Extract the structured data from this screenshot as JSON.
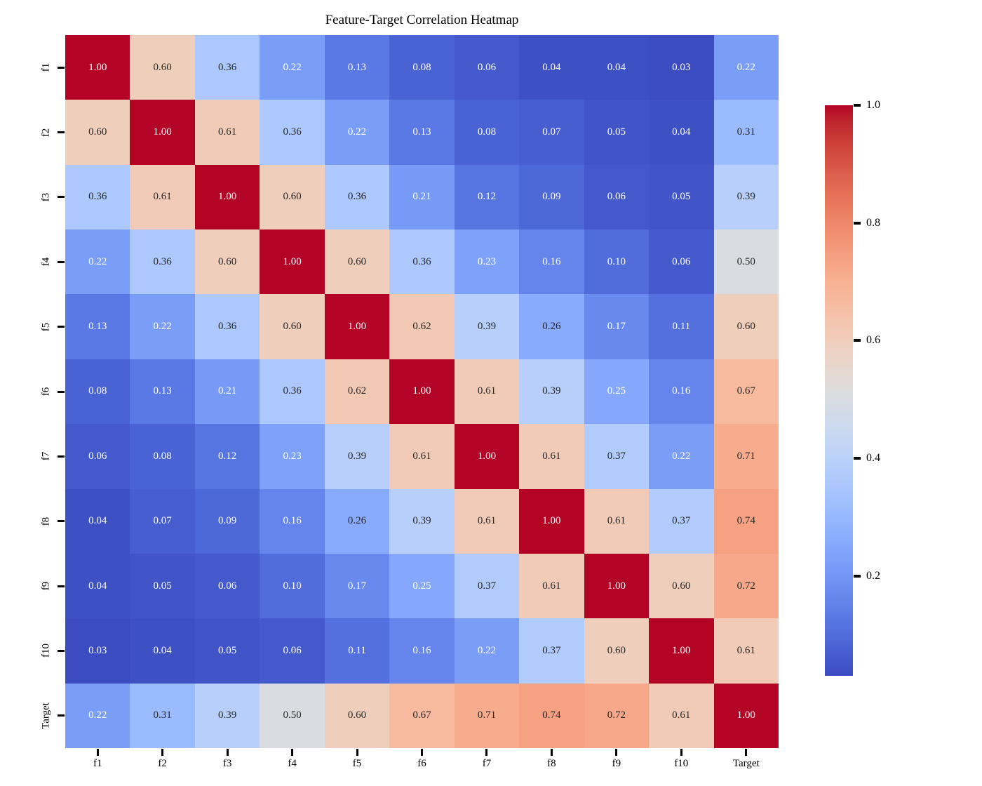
{
  "title": "Feature-Target Correlation Heatmap",
  "colors": {
    "background": "#ffffff",
    "axis_text": "#000000",
    "annotation_dark": "#262626",
    "annotation_light": "#ffffff",
    "cmap_min": "#3b4cc0",
    "cmap_mid": "#dddcdc",
    "cmap_max": "#b40426"
  },
  "chart_data": {
    "type": "heatmap",
    "title": "Feature-Target Correlation Heatmap",
    "labels": [
      "f1",
      "f2",
      "f3",
      "f4",
      "f5",
      "f6",
      "f7",
      "f8",
      "f9",
      "f10",
      "Target"
    ],
    "matrix": [
      [
        1.0,
        0.6,
        0.36,
        0.22,
        0.13,
        0.08,
        0.06,
        0.04,
        0.04,
        0.03,
        0.22
      ],
      [
        0.6,
        1.0,
        0.61,
        0.36,
        0.22,
        0.13,
        0.08,
        0.07,
        0.05,
        0.04,
        0.31
      ],
      [
        0.36,
        0.61,
        1.0,
        0.6,
        0.36,
        0.21,
        0.12,
        0.09,
        0.06,
        0.05,
        0.39
      ],
      [
        0.22,
        0.36,
        0.6,
        1.0,
        0.6,
        0.36,
        0.23,
        0.16,
        0.1,
        0.06,
        0.5
      ],
      [
        0.13,
        0.22,
        0.36,
        0.6,
        1.0,
        0.62,
        0.39,
        0.26,
        0.17,
        0.11,
        0.6
      ],
      [
        0.08,
        0.13,
        0.21,
        0.36,
        0.62,
        1.0,
        0.61,
        0.39,
        0.25,
        0.16,
        0.67
      ],
      [
        0.06,
        0.08,
        0.12,
        0.23,
        0.39,
        0.61,
        1.0,
        0.61,
        0.37,
        0.22,
        0.71
      ],
      [
        0.04,
        0.07,
        0.09,
        0.16,
        0.26,
        0.39,
        0.61,
        1.0,
        0.61,
        0.37,
        0.74
      ],
      [
        0.04,
        0.05,
        0.06,
        0.1,
        0.17,
        0.25,
        0.37,
        0.61,
        1.0,
        0.6,
        0.72
      ],
      [
        0.03,
        0.04,
        0.05,
        0.06,
        0.11,
        0.16,
        0.22,
        0.37,
        0.6,
        1.0,
        0.61
      ],
      [
        0.22,
        0.31,
        0.39,
        0.5,
        0.6,
        0.67,
        0.71,
        0.74,
        0.72,
        0.61,
        1.0
      ]
    ],
    "annotation_decimals": 2,
    "vmin": 0.03,
    "vmax": 1.0,
    "colorbar_ticks": [
      1.0,
      0.8,
      0.6,
      0.4,
      0.2
    ],
    "legend_position": "right-colorbar",
    "grid": false,
    "colormap": {
      "name": "coolwarm",
      "stops": [
        [
          0.23,
          0.299,
          0.754
        ],
        [
          0.266,
          0.353,
          0.801
        ],
        [
          0.304,
          0.407,
          0.845
        ],
        [
          0.343,
          0.459,
          0.884
        ],
        [
          0.383,
          0.509,
          0.917
        ],
        [
          0.424,
          0.558,
          0.946
        ],
        [
          0.467,
          0.605,
          0.968
        ],
        [
          0.51,
          0.648,
          0.985
        ],
        [
          0.553,
          0.689,
          0.995
        ],
        [
          0.596,
          0.726,
          1.0
        ],
        [
          0.639,
          0.76,
          0.998
        ],
        [
          0.681,
          0.789,
          0.99
        ],
        [
          0.722,
          0.814,
          0.977
        ],
        [
          0.761,
          0.834,
          0.957
        ],
        [
          0.799,
          0.85,
          0.932
        ],
        [
          0.833,
          0.86,
          0.901
        ],
        [
          0.865,
          0.865,
          0.865
        ],
        [
          0.898,
          0.849,
          0.821
        ],
        [
          0.924,
          0.827,
          0.775
        ],
        [
          0.944,
          0.801,
          0.727
        ],
        [
          0.959,
          0.77,
          0.678
        ],
        [
          0.967,
          0.734,
          0.629
        ],
        [
          0.97,
          0.694,
          0.579
        ],
        [
          0.967,
          0.65,
          0.53
        ],
        [
          0.958,
          0.603,
          0.482
        ],
        [
          0.944,
          0.552,
          0.434
        ],
        [
          0.924,
          0.497,
          0.388
        ],
        [
          0.899,
          0.44,
          0.343
        ],
        [
          0.869,
          0.378,
          0.3
        ],
        [
          0.835,
          0.313,
          0.259
        ],
        [
          0.796,
          0.241,
          0.221
        ],
        [
          0.753,
          0.157,
          0.184
        ],
        [
          0.706,
          0.016,
          0.15
        ]
      ]
    }
  }
}
